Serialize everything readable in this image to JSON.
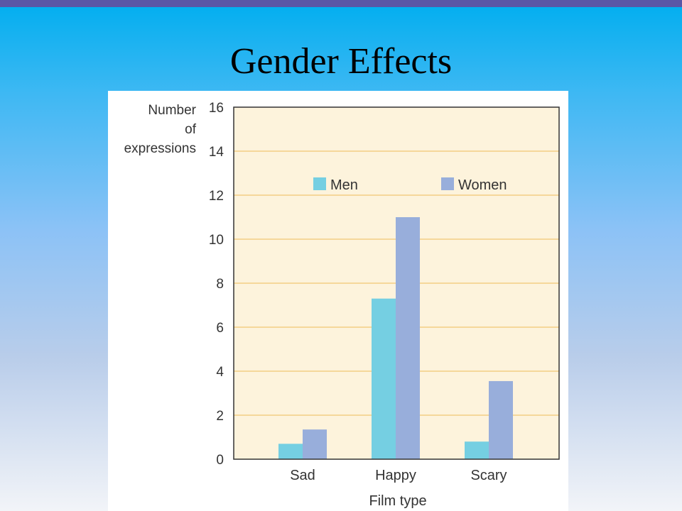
{
  "slide": {
    "title": "Gender Effects"
  },
  "colors": {
    "top_bar": "#5b56a6",
    "plot_background": "#fdf3dc",
    "gridline": "#f5d79a",
    "men": "#75cfe2",
    "women": "#98aedb"
  },
  "chart_data": {
    "type": "bar",
    "ylabel_lines": [
      "Number",
      "of",
      "expressions"
    ],
    "xlabel": "Film type",
    "categories": [
      "Sad",
      "Happy",
      "Scary"
    ],
    "series": [
      {
        "name": "Men",
        "values": [
          0.7,
          7.3,
          0.8
        ]
      },
      {
        "name": "Women",
        "values": [
          1.35,
          11.0,
          3.55
        ]
      }
    ],
    "ylim": [
      0,
      16
    ],
    "yticks": [
      0,
      2,
      4,
      6,
      8,
      10,
      12,
      14,
      16
    ],
    "grid": true,
    "legend_position": "top"
  }
}
